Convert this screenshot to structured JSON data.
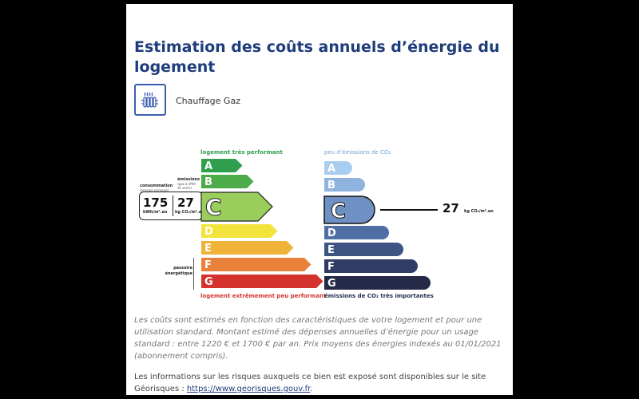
{
  "page": {
    "title": "Estimation des coûts annuels d’énergie du logement",
    "heating_label": "Chauffage Gaz",
    "heating_icon": "radiator-icon"
  },
  "energy_scale": {
    "top_label": "logement très performant",
    "bottom_label": "logement extrêmement peu performant",
    "side_label_line1": "passoire",
    "side_label_line2": "énergétique",
    "consumption_label": "consommation",
    "consumption_sub": "(énergie primaire)",
    "emissions_label": "émissions",
    "emissions_sub_line1": "(gaz à effet",
    "emissions_sub_line2": "de serre)",
    "consumption_value": "175",
    "consumption_unit": "kWh/m².an",
    "emissions_value": "27",
    "emissions_unit": "kg CO₂/m².an",
    "current_class": "C",
    "classes": [
      "A",
      "B",
      "C",
      "D",
      "E",
      "F",
      "G"
    ],
    "colors": [
      "#2f9e4d",
      "#4eab4a",
      "#9bcd5c",
      "#f2e43b",
      "#f0b33a",
      "#e8813a",
      "#d4322c"
    ]
  },
  "ges_scale": {
    "top_label": "peu d’émissions de CO₂",
    "bottom_label": "émissions de CO₂ très importantes",
    "current_class": "C",
    "value": "27",
    "unit": "kg CO₂/m².an",
    "classes": [
      "A",
      "B",
      "C",
      "D",
      "E",
      "F",
      "G"
    ],
    "colors": [
      "#a9cdef",
      "#8fb3de",
      "#6f90c2",
      "#4f6ea5",
      "#3e5483",
      "#2f3c63",
      "#242a47"
    ]
  },
  "notes": {
    "paragraph1": "Les coûts sont estimés en fonction des caractéristiques de votre logement et pour une utilisation standard. Montant estimé des dépenses annuelles d’énergie pour un usage standard : entre 1220 € et 1700 € par an. Prix moyens des énergies indexés au 01/01/2021 (abonnement compris).",
    "paragraph2_text": "Les informations sur les risques auxquels ce bien est exposé sont disponibles sur le site Géorisques : ",
    "paragraph2_link": "https://www.georisques.gouv.fr",
    "paragraph2_end": "."
  }
}
